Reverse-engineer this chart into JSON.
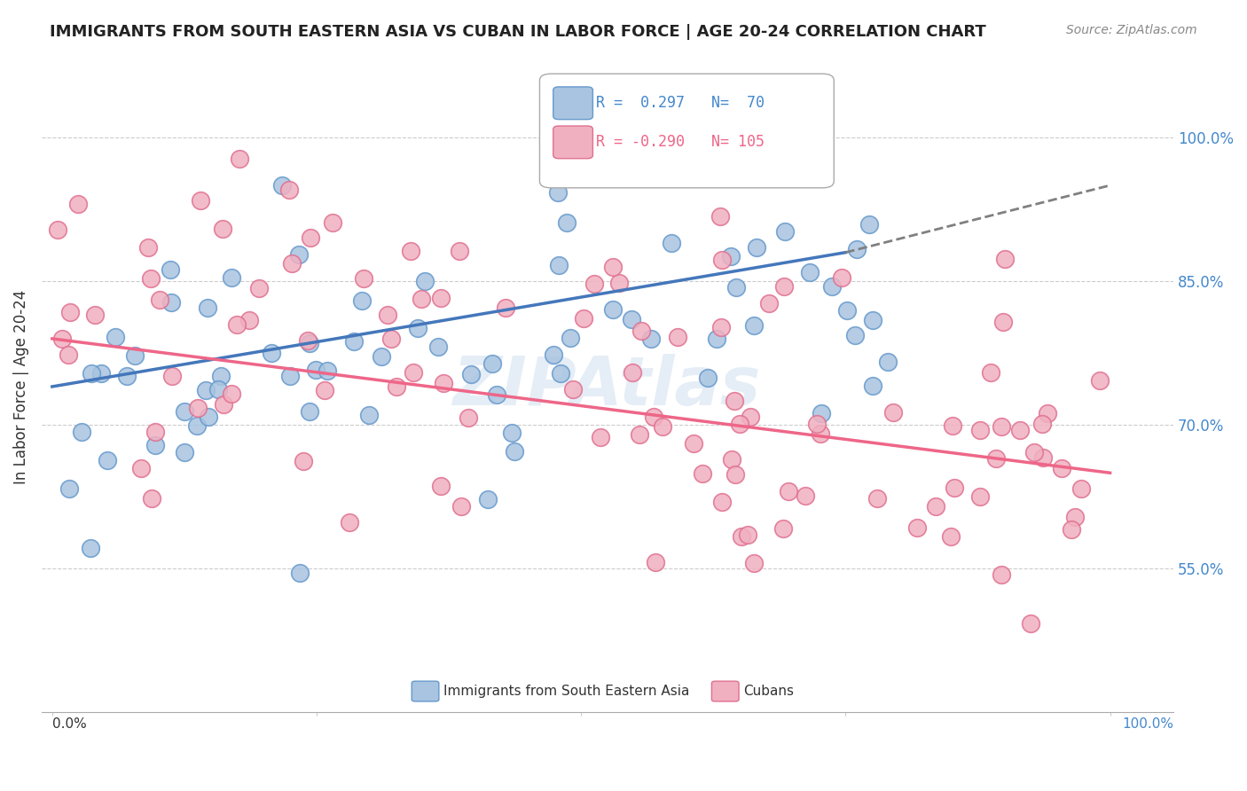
{
  "title": "IMMIGRANTS FROM SOUTH EASTERN ASIA VS CUBAN IN LABOR FORCE | AGE 20-24 CORRELATION CHART",
  "source": "Source: ZipAtlas.com",
  "ylabel": "In Labor Force | Age 20-24",
  "yaxis_values": [
    0.55,
    0.7,
    0.85,
    1.0
  ],
  "legend_blue_r": "0.297",
  "legend_blue_n": "70",
  "legend_pink_r": "-0.290",
  "legend_pink_n": "105",
  "legend_blue_label": "Immigrants from South Eastern Asia",
  "legend_pink_label": "Cubans",
  "blue_color": "#a8c4e0",
  "blue_edge": "#6699cc",
  "pink_color": "#f0b0c0",
  "pink_edge": "#e07090",
  "blue_line_color": "#4477bb",
  "pink_line_color": "#ee6688",
  "watermark_color": "#ccddee"
}
